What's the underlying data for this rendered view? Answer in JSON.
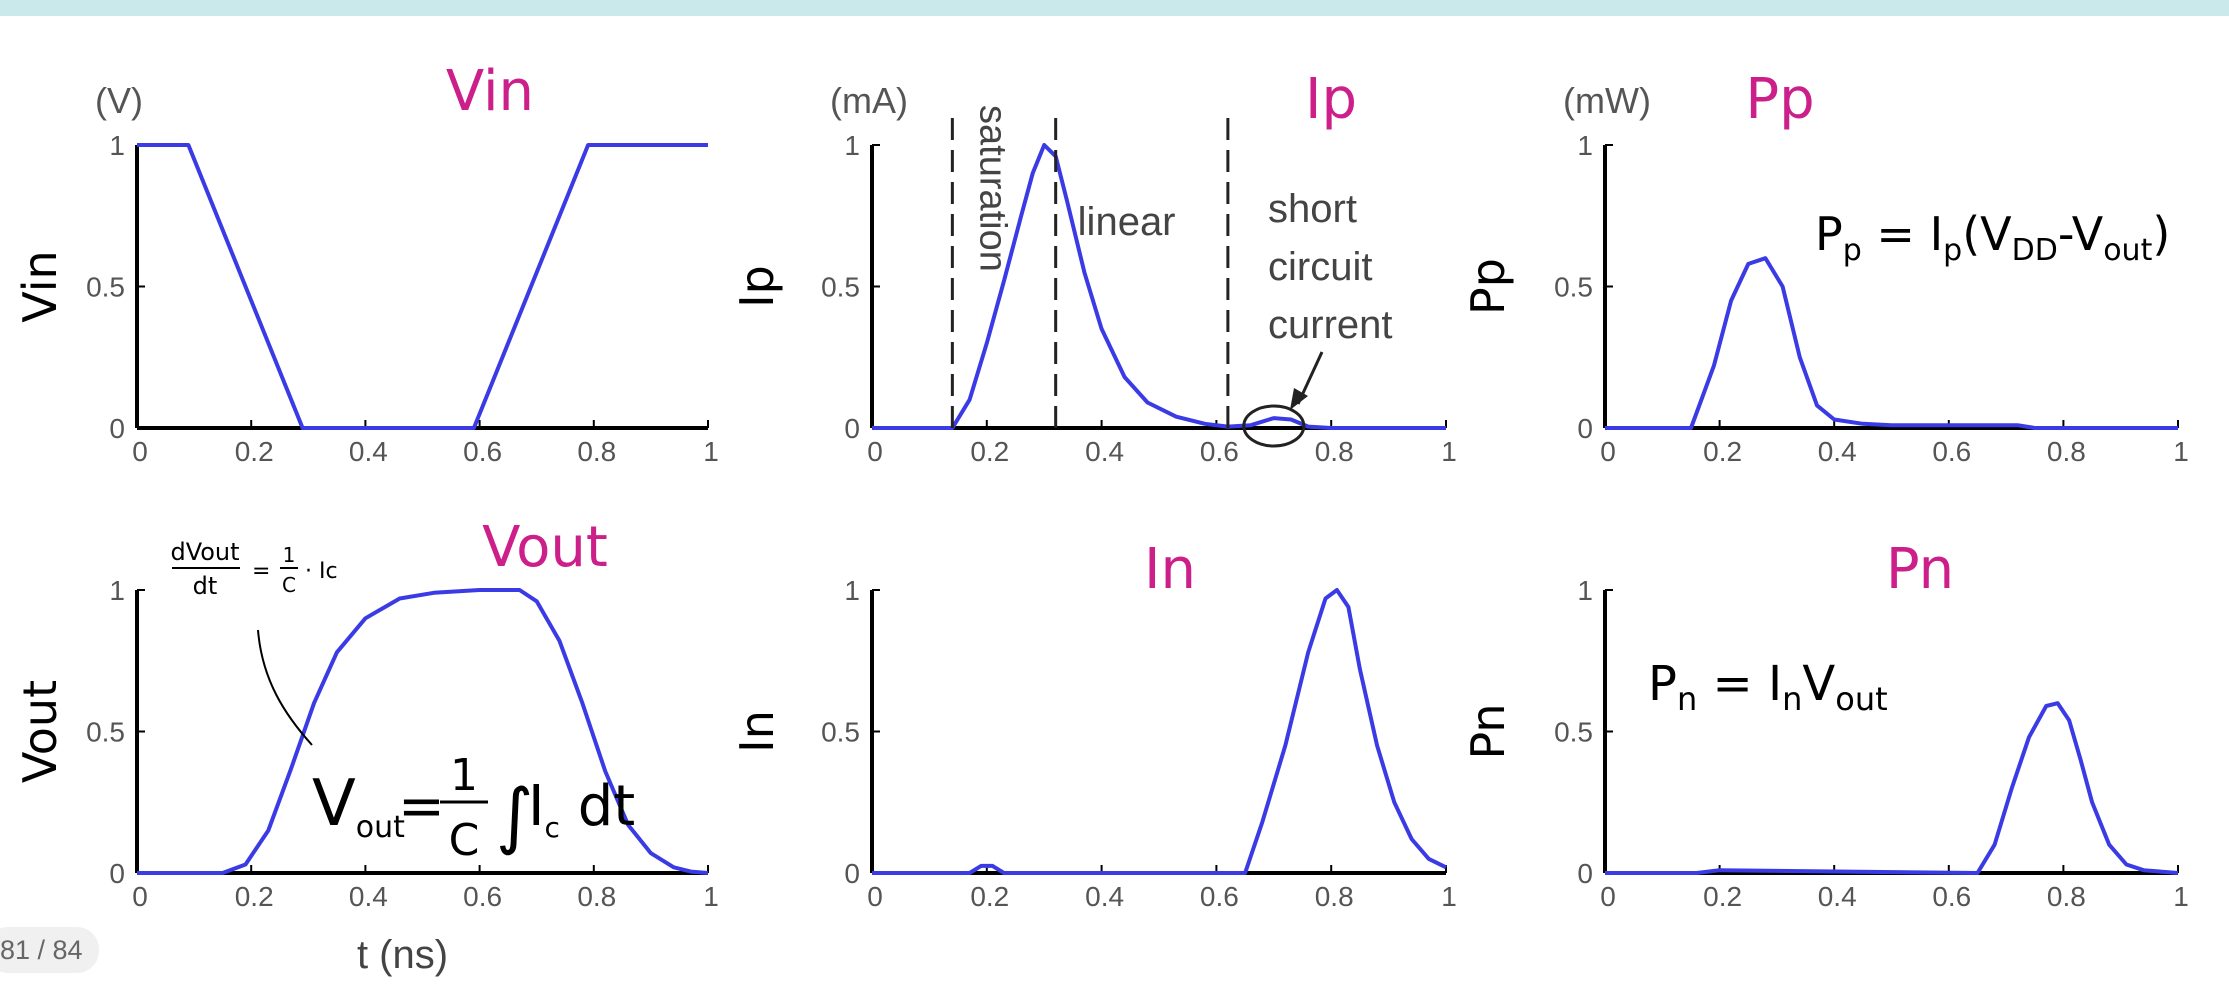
{
  "viewer": {
    "page_counter": "81 / 84"
  },
  "colors": {
    "curve": "#3b3be6",
    "annotation": "#cc1f8a",
    "axis": "#000000",
    "tick": "#555555",
    "strip": "#c9e9ea"
  },
  "chart_data": [
    {
      "id": "vin",
      "type": "line",
      "unit_label": "(V)",
      "ylabel": "Vin",
      "xlabel": "",
      "handwritten_title": "Vin",
      "xlim": [
        0,
        1
      ],
      "ylim": [
        0,
        1
      ],
      "xticks": [
        "0",
        "0.2",
        "0.4",
        "0.6",
        "0.8",
        "1"
      ],
      "yticks": [
        "0",
        "0.5",
        "1"
      ],
      "series": [
        {
          "x": [
            0,
            0.09,
            0.29,
            0.59,
            0.79,
            1.0
          ],
          "y": [
            1,
            1,
            0,
            0,
            1,
            1
          ]
        }
      ]
    },
    {
      "id": "ip",
      "type": "line",
      "unit_label": "(mA)",
      "ylabel": "Ip",
      "xlabel": "",
      "handwritten_title": "Ip",
      "xlim": [
        0,
        1
      ],
      "ylim": [
        0,
        1
      ],
      "xticks": [
        "0",
        "0.2",
        "0.4",
        "0.6",
        "0.8",
        "1"
      ],
      "yticks": [
        "0",
        "0.5",
        "1"
      ],
      "series": [
        {
          "x": [
            0,
            0.14,
            0.17,
            0.2,
            0.23,
            0.26,
            0.28,
            0.3,
            0.32,
            0.34,
            0.37,
            0.4,
            0.44,
            0.48,
            0.53,
            0.58,
            0.62,
            0.66,
            0.7,
            0.73,
            0.76,
            0.8,
            1.0
          ],
          "y": [
            0,
            0,
            0.1,
            0.3,
            0.52,
            0.75,
            0.9,
            1.0,
            0.96,
            0.8,
            0.55,
            0.35,
            0.18,
            0.09,
            0.04,
            0.015,
            0.005,
            0.01,
            0.035,
            0.03,
            0.005,
            0,
            0
          ]
        }
      ],
      "annotations": [
        {
          "type": "vline",
          "x": 0.14,
          "label": "saturation"
        },
        {
          "type": "vline",
          "x": 0.32,
          "label": "linear"
        },
        {
          "type": "vline",
          "x": 0.62,
          "label": ""
        },
        {
          "type": "text",
          "lines": [
            "short",
            "circuit",
            "current"
          ]
        }
      ]
    },
    {
      "id": "pp",
      "type": "line",
      "unit_label": "(mW)",
      "ylabel": "Pp",
      "xlabel": "",
      "handwritten_title": "Pp",
      "formula": {
        "main": "P",
        "sub1": "p",
        "mid": " = I",
        "sub2": "p",
        "paren": "(V",
        "sub3": "DD",
        "dash": "-V",
        "sub4": "out",
        "close": ")"
      },
      "xlim": [
        0,
        1
      ],
      "ylim": [
        0,
        1
      ],
      "xticks": [
        "0",
        "0.2",
        "0.4",
        "0.6",
        "0.8",
        "1"
      ],
      "yticks": [
        "0",
        "0.5",
        "1"
      ],
      "series": [
        {
          "x": [
            0,
            0.15,
            0.19,
            0.22,
            0.25,
            0.28,
            0.31,
            0.34,
            0.37,
            0.4,
            0.45,
            0.5,
            0.6,
            0.72,
            0.75,
            1.0
          ],
          "y": [
            0,
            0,
            0.22,
            0.45,
            0.58,
            0.6,
            0.5,
            0.25,
            0.08,
            0.03,
            0.015,
            0.01,
            0.01,
            0.01,
            0,
            0
          ]
        }
      ]
    },
    {
      "id": "vout",
      "type": "line",
      "unit_label": "",
      "ylabel": "Vout",
      "xlabel": "t (ns)",
      "handwritten_title": "Vout",
      "formula_main": {
        "v": "V",
        "sub": "out",
        "eq": "=",
        "num": "1",
        "den": "C",
        "integral": "∫",
        "rest": "I",
        "rest_sub": "c",
        "dt": "dt"
      },
      "formula_small": {
        "dnum": "dVout",
        "dden": "dt",
        "eq": "=",
        "num": "1",
        "den": "C",
        "rest": "· Ic"
      },
      "xlim": [
        0,
        1
      ],
      "ylim": [
        0,
        1
      ],
      "xticks": [
        "0",
        "0.2",
        "0.4",
        "0.6",
        "0.8",
        "1"
      ],
      "yticks": [
        "0",
        "0.5",
        "1"
      ],
      "series": [
        {
          "x": [
            0,
            0.15,
            0.19,
            0.23,
            0.27,
            0.31,
            0.35,
            0.4,
            0.46,
            0.52,
            0.6,
            0.67,
            0.7,
            0.74,
            0.78,
            0.82,
            0.86,
            0.9,
            0.94,
            0.97,
            1.0
          ],
          "y": [
            0,
            0,
            0.03,
            0.15,
            0.37,
            0.6,
            0.78,
            0.9,
            0.97,
            0.99,
            1.0,
            1.0,
            0.96,
            0.82,
            0.6,
            0.36,
            0.17,
            0.07,
            0.02,
            0.005,
            0
          ]
        }
      ]
    },
    {
      "id": "in",
      "type": "line",
      "unit_label": "",
      "ylabel": "In",
      "xlabel": "",
      "handwritten_title": "In",
      "xlim": [
        0,
        1
      ],
      "ylim": [
        0,
        1
      ],
      "xticks": [
        "0",
        "0.2",
        "0.4",
        "0.6",
        "0.8",
        "1"
      ],
      "yticks": [
        "0",
        "0.5",
        "1"
      ],
      "series": [
        {
          "x": [
            0,
            0.17,
            0.19,
            0.21,
            0.23,
            0.65,
            0.68,
            0.72,
            0.76,
            0.79,
            0.81,
            0.83,
            0.85,
            0.88,
            0.91,
            0.94,
            0.97,
            1.0
          ],
          "y": [
            0,
            0,
            0.025,
            0.025,
            0,
            0,
            0.18,
            0.45,
            0.78,
            0.97,
            1.0,
            0.94,
            0.72,
            0.45,
            0.25,
            0.12,
            0.05,
            0.02
          ]
        }
      ]
    },
    {
      "id": "pn",
      "type": "line",
      "unit_label": "",
      "ylabel": "Pn",
      "xlabel": "",
      "handwritten_title": "Pn",
      "formula": {
        "main": "P",
        "sub1": "n",
        "mid": " = I",
        "sub2": "n",
        "tail": "V",
        "sub3": "out"
      },
      "xlim": [
        0,
        1
      ],
      "ylim": [
        0,
        1
      ],
      "xticks": [
        "0",
        "0.2",
        "0.4",
        "0.6",
        "0.8",
        "1"
      ],
      "yticks": [
        "0",
        "0.5",
        "1"
      ],
      "series": [
        {
          "x": [
            0,
            0.16,
            0.2,
            0.65,
            0.68,
            0.71,
            0.74,
            0.77,
            0.79,
            0.81,
            0.83,
            0.85,
            0.88,
            0.91,
            0.94,
            1.0
          ],
          "y": [
            0,
            0,
            0.01,
            0,
            0.1,
            0.3,
            0.48,
            0.59,
            0.6,
            0.54,
            0.4,
            0.25,
            0.1,
            0.03,
            0.01,
            0
          ]
        }
      ]
    }
  ]
}
